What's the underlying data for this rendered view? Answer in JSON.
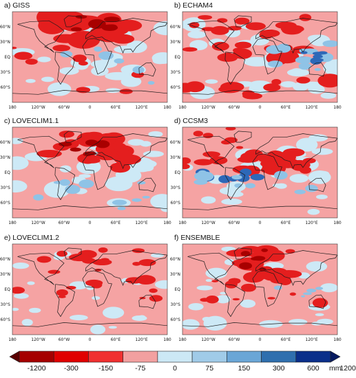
{
  "panels": [
    {
      "title": "a) GISS"
    },
    {
      "title": "b) ECHAM4"
    },
    {
      "title": "c) LOVECLIM1.1"
    },
    {
      "title": "d) CCSM3"
    },
    {
      "title": "e) LOVECLIM1.2"
    },
    {
      "title": "f) ENSEMBLE"
    }
  ],
  "lat_labels": [
    "60°N",
    "30°N",
    "EQ",
    "30°S",
    "60°S"
  ],
  "lon_labels": [
    "180",
    "120°W",
    "60°W",
    "0",
    "60°E",
    "120°E",
    "180"
  ],
  "colorbar": {
    "labels": [
      "-1200",
      "-300",
      "-150",
      "-75",
      "0",
      "75",
      "150",
      "300",
      "600",
      "1200"
    ],
    "unit": "mm",
    "colors": [
      "#5a0000",
      "#a50000",
      "#e00000",
      "#f03030",
      "#f2a0a0",
      "#cce8f5",
      "#a0cbe8",
      "#6aa6d6",
      "#2f6fae",
      "#0a2f8a",
      "#061a60"
    ]
  },
  "colors": {
    "background": "#f5a3a3",
    "coast": "#1a1a1a"
  }
}
